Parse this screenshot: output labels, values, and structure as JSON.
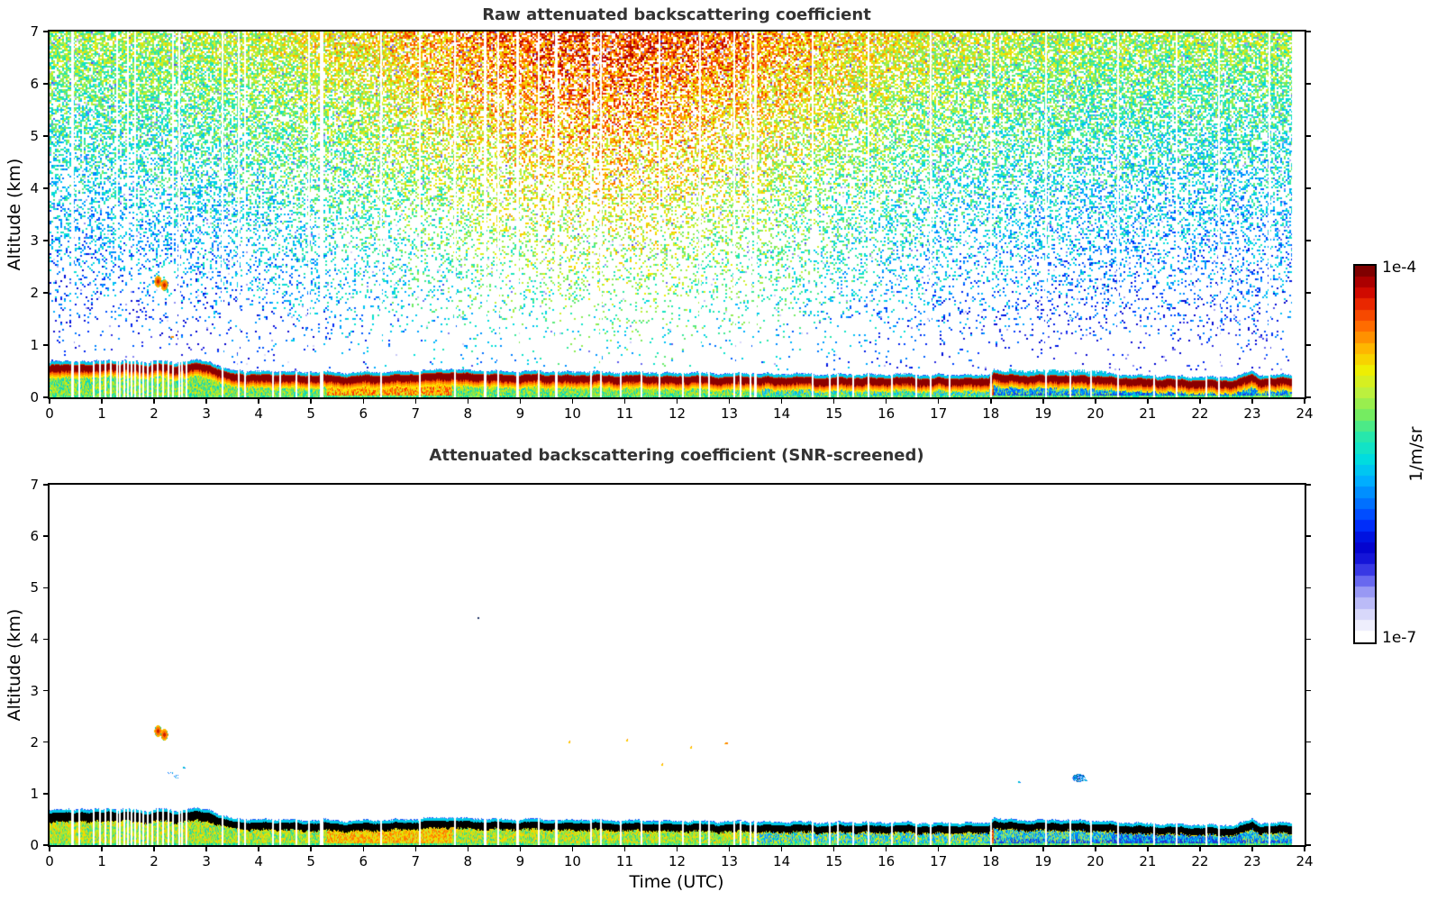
{
  "chart_data": {
    "type": "heatmap",
    "figure_background": "#ffffff",
    "shared_xlabel": "Time (UTC)",
    "panels": [
      {
        "id": "raw",
        "mode": "raw",
        "title": "Raw attenuated backscattering coefficient",
        "ylabel": "Altitude (km)",
        "xlim": [
          0,
          24
        ],
        "ylim": [
          0,
          7
        ],
        "xticks": [
          "0",
          "1",
          "2",
          "3",
          "4",
          "5",
          "6",
          "7",
          "8",
          "9",
          "10",
          "11",
          "12",
          "13",
          "14",
          "15",
          "16",
          "17",
          "18",
          "19",
          "20",
          "21",
          "22",
          "23",
          "24"
        ],
        "yticks": [
          "0",
          "1",
          "2",
          "3",
          "4",
          "5",
          "6",
          "7"
        ]
      },
      {
        "id": "screened",
        "mode": "screened",
        "title": "Attenuated backscattering coefficient (SNR-screened)",
        "ylabel": "Altitude (km)",
        "xlim": [
          0,
          24
        ],
        "ylim": [
          0,
          7
        ],
        "xticks": [
          "0",
          "1",
          "2",
          "3",
          "4",
          "5",
          "6",
          "7",
          "8",
          "9",
          "10",
          "11",
          "12",
          "13",
          "14",
          "15",
          "16",
          "17",
          "18",
          "19",
          "20",
          "21",
          "22",
          "23",
          "24"
        ],
        "yticks": [
          "0",
          "1",
          "2",
          "3",
          "4",
          "5",
          "6",
          "7"
        ]
      }
    ],
    "colorbar": {
      "max_label": "1e-4",
      "min_label": "1e-7",
      "unit_label": "1/m/sr",
      "scale": "log",
      "bands": 34,
      "stops": [
        [
          0.0,
          "#ffffff"
        ],
        [
          0.04,
          "#e8e8fc"
        ],
        [
          0.08,
          "#c8c8f8"
        ],
        [
          0.12,
          "#9a9af4"
        ],
        [
          0.16,
          "#5a5aee"
        ],
        [
          0.2,
          "#1c1cdc"
        ],
        [
          0.25,
          "#0000cd"
        ],
        [
          0.31,
          "#0033ff"
        ],
        [
          0.37,
          "#0077ff"
        ],
        [
          0.43,
          "#00b4ff"
        ],
        [
          0.49,
          "#00e0dc"
        ],
        [
          0.55,
          "#2ae8a8"
        ],
        [
          0.61,
          "#7aec5c"
        ],
        [
          0.67,
          "#c0f03c"
        ],
        [
          0.73,
          "#f0ee00"
        ],
        [
          0.79,
          "#ffb400"
        ],
        [
          0.85,
          "#ff6a00"
        ],
        [
          0.9,
          "#f03000"
        ],
        [
          0.95,
          "#c80000"
        ],
        [
          1.0,
          "#7f0000"
        ]
      ]
    },
    "data_end_hour": 23.75,
    "noise": {
      "seed": 42,
      "day_center_hour": 10.8,
      "day_width_hours": 5.2,
      "base_value": 0.24,
      "altitude_gain": 0.4,
      "day_gain": 0.26,
      "jitter": 0.26,
      "density_max": 0.8,
      "dark_dot_fraction": 0.05
    },
    "boundary_layer_height_km": [
      [
        0,
        0.63
      ],
      [
        0.5,
        0.66
      ],
      [
        0.8,
        0.63
      ],
      [
        1.1,
        0.68
      ],
      [
        1.35,
        0.64
      ],
      [
        1.6,
        0.66
      ],
      [
        1.9,
        0.62
      ],
      [
        2.1,
        0.66
      ],
      [
        2.4,
        0.63
      ],
      [
        2.7,
        0.66
      ],
      [
        3.0,
        0.66
      ],
      [
        3.15,
        0.6
      ],
      [
        3.35,
        0.5
      ],
      [
        3.6,
        0.47
      ],
      [
        4.0,
        0.45
      ],
      [
        4.5,
        0.46
      ],
      [
        4.8,
        0.43
      ],
      [
        5.2,
        0.45
      ],
      [
        5.6,
        0.42
      ],
      [
        6.0,
        0.44
      ],
      [
        6.5,
        0.44
      ],
      [
        7.0,
        0.46
      ],
      [
        7.3,
        0.48
      ],
      [
        7.6,
        0.5
      ],
      [
        7.9,
        0.48
      ],
      [
        8.3,
        0.47
      ],
      [
        8.8,
        0.45
      ],
      [
        9.3,
        0.46
      ],
      [
        9.8,
        0.44
      ],
      [
        10.3,
        0.45
      ],
      [
        10.8,
        0.43
      ],
      [
        11.3,
        0.44
      ],
      [
        11.8,
        0.42
      ],
      [
        12.3,
        0.43
      ],
      [
        12.8,
        0.41
      ],
      [
        13.3,
        0.42
      ],
      [
        13.8,
        0.4
      ],
      [
        14.3,
        0.41
      ],
      [
        14.8,
        0.39
      ],
      [
        15.3,
        0.4
      ],
      [
        15.8,
        0.39
      ],
      [
        16.3,
        0.4
      ],
      [
        16.8,
        0.38
      ],
      [
        17.3,
        0.39
      ],
      [
        17.8,
        0.38
      ],
      [
        17.95,
        0.4
      ],
      [
        18.05,
        0.5
      ],
      [
        18.15,
        0.46
      ],
      [
        18.3,
        0.44
      ],
      [
        18.5,
        0.46
      ],
      [
        18.7,
        0.43
      ],
      [
        19.0,
        0.44
      ],
      [
        19.3,
        0.45
      ],
      [
        19.5,
        0.43
      ],
      [
        19.8,
        0.44
      ],
      [
        20.1,
        0.42
      ],
      [
        20.4,
        0.4
      ],
      [
        20.8,
        0.38
      ],
      [
        21.2,
        0.37
      ],
      [
        21.6,
        0.36
      ],
      [
        22.0,
        0.35
      ],
      [
        22.4,
        0.34
      ],
      [
        22.7,
        0.35
      ],
      [
        22.85,
        0.42
      ],
      [
        23.0,
        0.46
      ],
      [
        23.1,
        0.4
      ],
      [
        23.3,
        0.38
      ],
      [
        23.5,
        0.39
      ],
      [
        23.75,
        0.4
      ]
    ],
    "under_band_zones": [
      [
        0,
        5.3,
        "green"
      ],
      [
        5.3,
        7.7,
        "orange"
      ],
      [
        7.7,
        13.45,
        "green"
      ],
      [
        13.45,
        18.0,
        "teal"
      ],
      [
        18.0,
        20.3,
        "cyanblue"
      ],
      [
        20.3,
        22.8,
        "blue"
      ],
      [
        22.8,
        24,
        "cyanblue"
      ]
    ],
    "red_streak_hours": [
      18.03
    ],
    "gap_hours": [
      [
        0.42,
        3
      ],
      [
        1.27,
        2
      ],
      [
        1.49,
        2
      ],
      [
        1.62,
        2
      ],
      [
        2.34,
        2
      ],
      [
        2.47,
        2
      ],
      [
        3.29,
        2
      ],
      [
        3.6,
        2
      ],
      [
        3.73,
        2
      ],
      [
        4.95,
        2
      ],
      [
        5.17,
        4
      ],
      [
        6.32,
        2
      ],
      [
        7.06,
        2
      ],
      [
        7.73,
        2
      ],
      [
        8.31,
        3
      ],
      [
        8.57,
        2
      ],
      [
        8.93,
        3
      ],
      [
        9.33,
        2
      ],
      [
        9.67,
        3
      ],
      [
        10.34,
        2
      ],
      [
        10.53,
        2
      ],
      [
        11.64,
        2
      ],
      [
        12.42,
        2
      ],
      [
        13.07,
        2
      ],
      [
        13.38,
        2
      ],
      [
        13.47,
        3
      ],
      [
        14.57,
        2
      ],
      [
        15.65,
        2
      ],
      [
        16.84,
        2
      ],
      [
        17.99,
        2
      ],
      [
        19.04,
        2
      ],
      [
        20.41,
        2
      ],
      [
        21.54,
        2
      ],
      [
        22.34,
        2
      ],
      [
        23.31,
        2
      ]
    ],
    "bl_gap_hours": [
      0.55,
      0.83,
      0.95,
      1.05,
      1.15,
      1.33,
      1.41,
      1.55,
      1.7,
      1.78,
      1.86,
      1.95,
      2.05,
      2.15,
      2.25,
      2.52,
      2.6,
      4.25,
      4.4,
      4.7,
      10.9,
      11.3,
      12.1,
      12.6,
      13.2,
      14.9,
      15.05,
      15.35,
      16.1,
      16.55,
      17.2,
      19.5,
      19.9,
      21.1,
      22.1
    ],
    "features": [
      {
        "t": 2.06,
        "alt": 2.22,
        "kind": "blob-orange",
        "panels": [
          "raw",
          "screened"
        ]
      },
      {
        "t": 2.18,
        "alt": 2.15,
        "kind": "blob-orange",
        "panels": [
          "raw",
          "screened"
        ]
      },
      {
        "t": 2.33,
        "alt": 1.17,
        "kind": "speck-orange",
        "panels": [
          "raw"
        ]
      },
      {
        "t": 2.3,
        "alt": 1.42,
        "kind": "speck-cyan",
        "panels": [
          "screened"
        ]
      },
      {
        "t": 2.42,
        "alt": 1.35,
        "kind": "speck-cyan",
        "panels": [
          "screened"
        ]
      },
      {
        "t": 2.55,
        "alt": 1.52,
        "kind": "speck-cyan-small",
        "panels": [
          "screened"
        ]
      },
      {
        "t": 8.18,
        "alt": 4.42,
        "kind": "speck-dark",
        "panels": [
          "screened"
        ]
      },
      {
        "t": 9.93,
        "alt": 2.02,
        "kind": "speck-yellow",
        "panels": [
          "screened"
        ]
      },
      {
        "t": 11.02,
        "alt": 2.05,
        "kind": "speck-yellow",
        "panels": [
          "screened"
        ]
      },
      {
        "t": 11.7,
        "alt": 1.57,
        "kind": "speck-yellow",
        "panels": [
          "screened"
        ]
      },
      {
        "t": 12.25,
        "alt": 1.9,
        "kind": "speck-yellow",
        "panels": [
          "screened"
        ]
      },
      {
        "t": 12.92,
        "alt": 2.0,
        "kind": "speck-orange",
        "panels": [
          "screened"
        ]
      },
      {
        "t": 18.52,
        "alt": 1.24,
        "kind": "speck-cyan-small",
        "panels": [
          "screened"
        ]
      },
      {
        "t": 19.55,
        "alt": 1.5,
        "kind": "speck-cyan",
        "panels": [
          "raw"
        ]
      },
      {
        "t": 19.68,
        "alt": 1.32,
        "kind": "blob-cyan",
        "panels": [
          "screened"
        ]
      },
      {
        "t": 19.8,
        "alt": 1.27,
        "kind": "speck-cyan-small",
        "panels": [
          "screened"
        ]
      }
    ],
    "band_colors": {
      "raw_band": "#8b0000",
      "screened_band": "#000000",
      "edge_cyan": "#00c8e6",
      "edge_blue": "#2952ff"
    }
  }
}
